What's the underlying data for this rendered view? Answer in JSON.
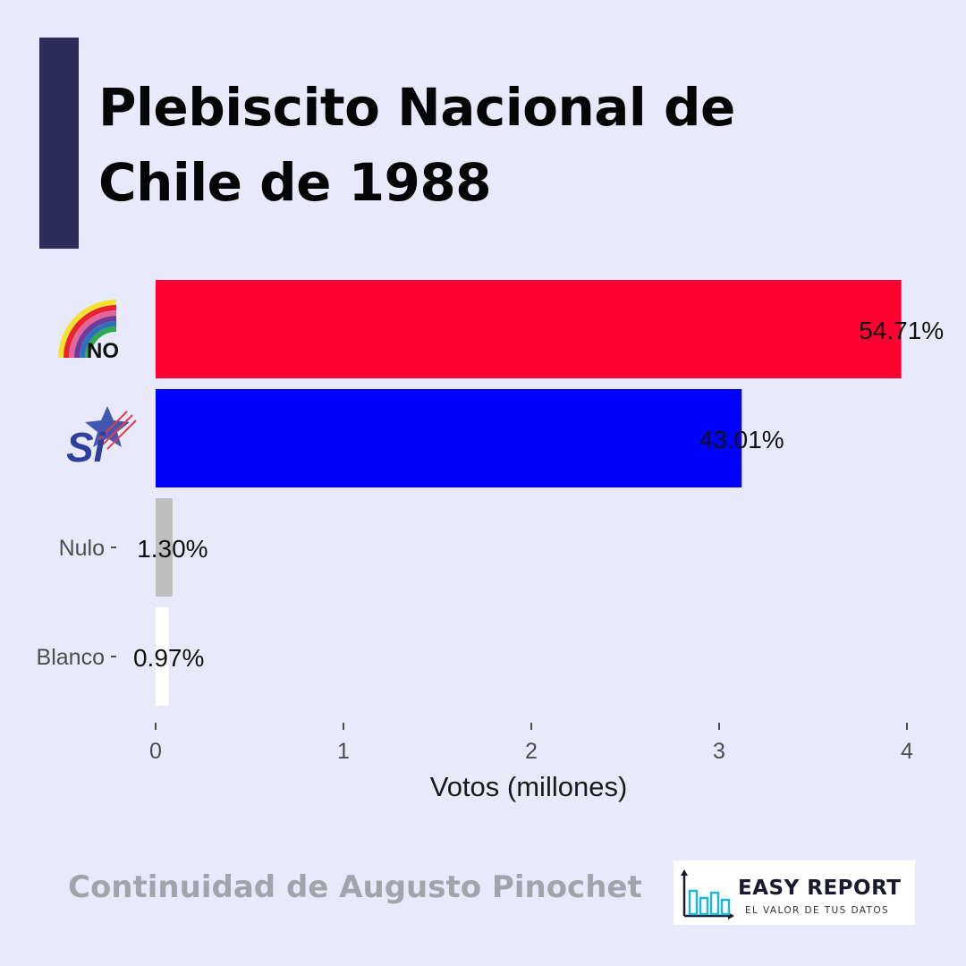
{
  "header": {
    "title_line1": "Plebiscito Nacional de",
    "title_line2": "Chile de 1988",
    "accent_color": "#2e2c5b"
  },
  "chart_data": {
    "type": "bar",
    "orientation": "horizontal",
    "categories": [
      "NO",
      "SI",
      "Nulo",
      "Blanco"
    ],
    "category_label_kind": [
      "logo",
      "logo",
      "text",
      "text"
    ],
    "values": [
      3.97,
      3.12,
      0.09,
      0.07
    ],
    "percent_labels": [
      "54.71%",
      "43.01%",
      "1.30%",
      "0.97%"
    ],
    "colors": [
      "#ff0033",
      "#0000ff",
      "#bebebe",
      "#ffffff"
    ],
    "xlabel": "Votos (millones)",
    "xticks": [
      0,
      1,
      2,
      3,
      4
    ],
    "xlim": [
      0,
      4.15
    ],
    "grid": false
  },
  "footer": {
    "subtitle": "Continuidad de Augusto Pinochet",
    "brand_name": "EASY REPORT",
    "brand_tagline": "EL VALOR DE TUS DATOS"
  },
  "icons": {
    "no_logo": "rainbow-no-logo",
    "si_logo": "si-star-logo",
    "brand_logo": "bar-chart-logo"
  }
}
